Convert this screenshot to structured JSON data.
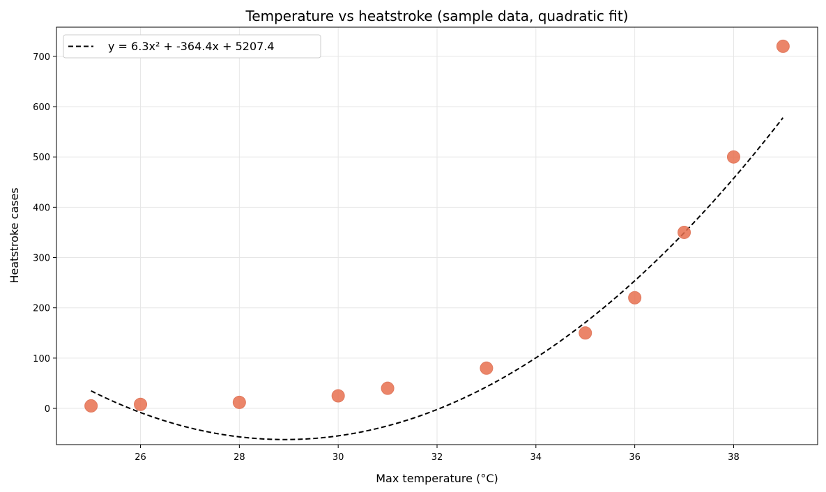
{
  "chart_data": {
    "type": "scatter",
    "title": "Temperature vs heatstroke (sample data, quadratic fit)",
    "xlabel": "Max temperature (°C)",
    "ylabel": "Heatstroke cases",
    "xlim": [
      24.3,
      39.7
    ],
    "ylim": [
      -72,
      758
    ],
    "xticks": [
      26,
      28,
      30,
      32,
      34,
      36,
      38
    ],
    "yticks": [
      0,
      100,
      200,
      300,
      400,
      500,
      600,
      700
    ],
    "grid": true,
    "legend_position": "upper-left",
    "scatter": {
      "color": "#e8704f",
      "points": [
        {
          "x": 25,
          "y": 5
        },
        {
          "x": 26,
          "y": 8
        },
        {
          "x": 28,
          "y": 12
        },
        {
          "x": 30,
          "y": 25
        },
        {
          "x": 31,
          "y": 40
        },
        {
          "x": 33,
          "y": 80
        },
        {
          "x": 35,
          "y": 150
        },
        {
          "x": 36,
          "y": 220
        },
        {
          "x": 37,
          "y": 350
        },
        {
          "x": 38,
          "y": 500
        },
        {
          "x": 39,
          "y": 720
        }
      ]
    },
    "fit": {
      "name": "y = 6.3x² + -364.4x + 5207.4",
      "style": "dashed",
      "color": "#000000",
      "coefficients": [
        6.3,
        -364.4,
        5207.4
      ],
      "x_range": [
        25,
        39
      ]
    }
  }
}
